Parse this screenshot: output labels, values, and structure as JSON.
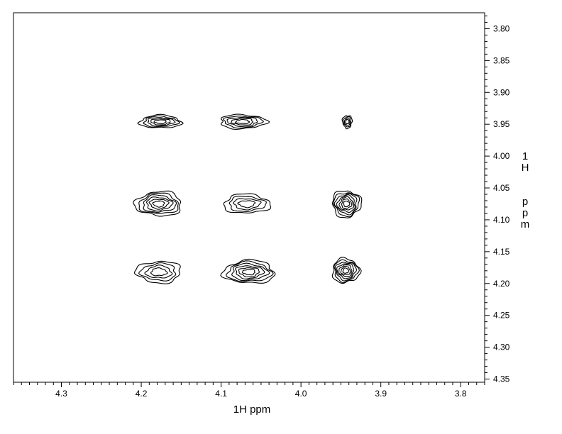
{
  "chart_data": {
    "type": "contour",
    "xlabel": "1H ppm",
    "ylabel": "1H ppm",
    "xlim": [
      4.36,
      3.77
    ],
    "ylim": [
      3.775,
      4.355
    ],
    "x_ticks": [
      "4.3",
      "4.2",
      "4.1",
      "4.0",
      "3.9",
      "3.8"
    ],
    "x_tick_values": [
      4.3,
      4.2,
      4.1,
      4.0,
      3.9,
      3.8
    ],
    "y_ticks": [
      "3.80",
      "3.85",
      "3.90",
      "3.95",
      "4.00",
      "4.05",
      "4.10",
      "4.15",
      "4.20",
      "4.25",
      "4.30",
      "4.35"
    ],
    "y_tick_values": [
      3.8,
      3.85,
      3.9,
      3.95,
      4.0,
      4.05,
      4.1,
      4.15,
      4.2,
      4.25,
      4.3,
      4.35
    ],
    "grid": false,
    "contour_color": "#000000",
    "peaks": [
      {
        "x": 4.176,
        "y": 3.946,
        "width": 0.052,
        "height": 0.02,
        "levels": 5
      },
      {
        "x": 4.073,
        "y": 3.946,
        "width": 0.058,
        "height": 0.022,
        "levels": 5
      },
      {
        "x": 3.942,
        "y": 3.946,
        "width": 0.012,
        "height": 0.02,
        "levels": 4
      },
      {
        "x": 4.178,
        "y": 4.075,
        "width": 0.058,
        "height": 0.038,
        "levels": 6
      },
      {
        "x": 4.068,
        "y": 4.075,
        "width": 0.058,
        "height": 0.03,
        "levels": 4
      },
      {
        "x": 3.943,
        "y": 4.075,
        "width": 0.036,
        "height": 0.042,
        "levels": 7
      },
      {
        "x": 4.178,
        "y": 4.182,
        "width": 0.056,
        "height": 0.034,
        "levels": 4
      },
      {
        "x": 4.065,
        "y": 4.182,
        "width": 0.064,
        "height": 0.036,
        "levels": 6
      },
      {
        "x": 3.944,
        "y": 4.18,
        "width": 0.034,
        "height": 0.038,
        "levels": 7
      }
    ]
  }
}
